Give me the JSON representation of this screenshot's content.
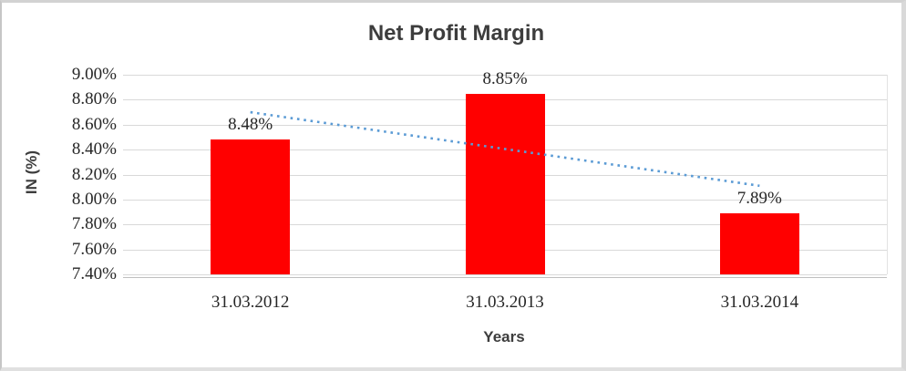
{
  "chart_data": {
    "type": "bar",
    "title": "Net Profit Margin",
    "xlabel": "Years",
    "ylabel": "IN (%)",
    "categories": [
      "31.03.2012",
      "31.03.2013",
      "31.03.2014"
    ],
    "values": [
      8.48,
      8.85,
      7.89
    ],
    "data_labels": [
      "8.48%",
      "8.85%",
      "7.89%"
    ],
    "y_ticks": [
      {
        "value": 9.0,
        "label": "9.00%"
      },
      {
        "value": 8.8,
        "label": "8.80%"
      },
      {
        "value": 8.6,
        "label": "8.60%"
      },
      {
        "value": 8.4,
        "label": "8.40%"
      },
      {
        "value": 8.2,
        "label": "8.20%"
      },
      {
        "value": 8.0,
        "label": "8.00%"
      },
      {
        "value": 7.8,
        "label": "7.80%"
      },
      {
        "value": 7.6,
        "label": "7.60%"
      },
      {
        "value": 7.4,
        "label": "7.40%"
      }
    ],
    "ylim": [
      7.4,
      9.0
    ],
    "grid": true,
    "legend": "none",
    "colors": {
      "bar": "#ff0000",
      "trendline": "#5b9bd5",
      "gridline": "#d9d9d9",
      "axis_line": "#bfbfbf",
      "title_text": "#3d3d3d",
      "label_text": "#262626"
    },
    "trendline": {
      "type": "linear",
      "style": "dotted",
      "color": "#5b9bd5",
      "value_start": 8.7,
      "value_end": 8.11,
      "from_category_index": 0,
      "to_category_index": 2
    }
  }
}
